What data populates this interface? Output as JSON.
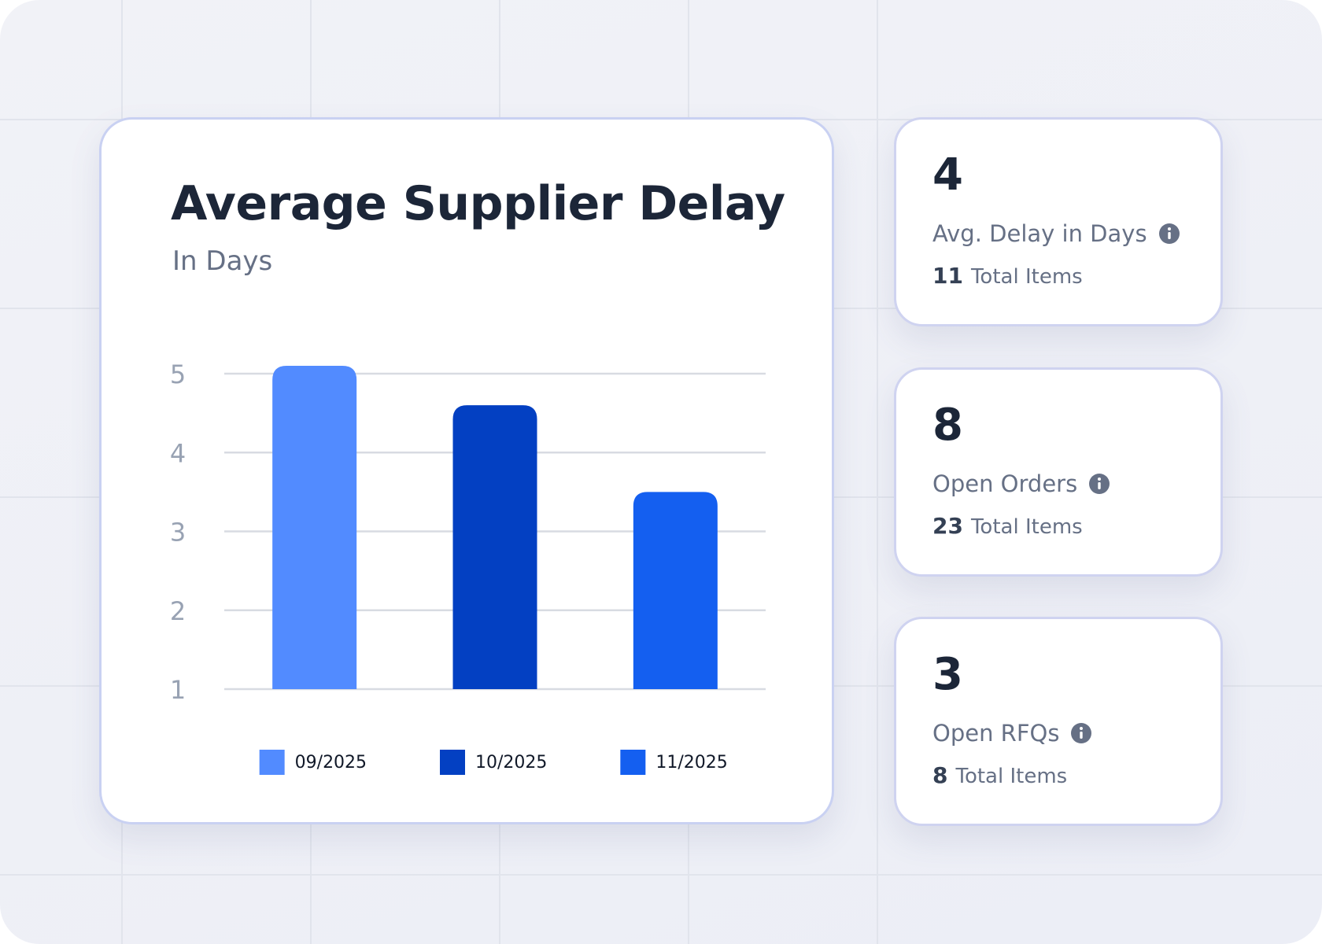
{
  "chart_data": {
    "type": "bar",
    "title": "Average Supplier Delay",
    "subtitle": "In Days",
    "categories": [
      "09/2025",
      "10/2025",
      "11/2025"
    ],
    "values": [
      5.1,
      4.6,
      3.5
    ],
    "colors": [
      "#528bff",
      "#0340c2",
      "#145ff0"
    ],
    "ylim": [
      1,
      5
    ],
    "yticks": [
      1,
      2,
      3,
      4,
      5
    ],
    "grid": true,
    "legend": "bottom"
  },
  "cards": [
    {
      "value": 4,
      "label": "Avg. Delay in Days",
      "count": 11,
      "count_label": "Total Items"
    },
    {
      "value": 8,
      "label": "Open Orders",
      "count": 23,
      "count_label": "Total Items"
    },
    {
      "value": 3,
      "label": "Open RFQs",
      "count": 8,
      "count_label": "Total Items"
    }
  ]
}
